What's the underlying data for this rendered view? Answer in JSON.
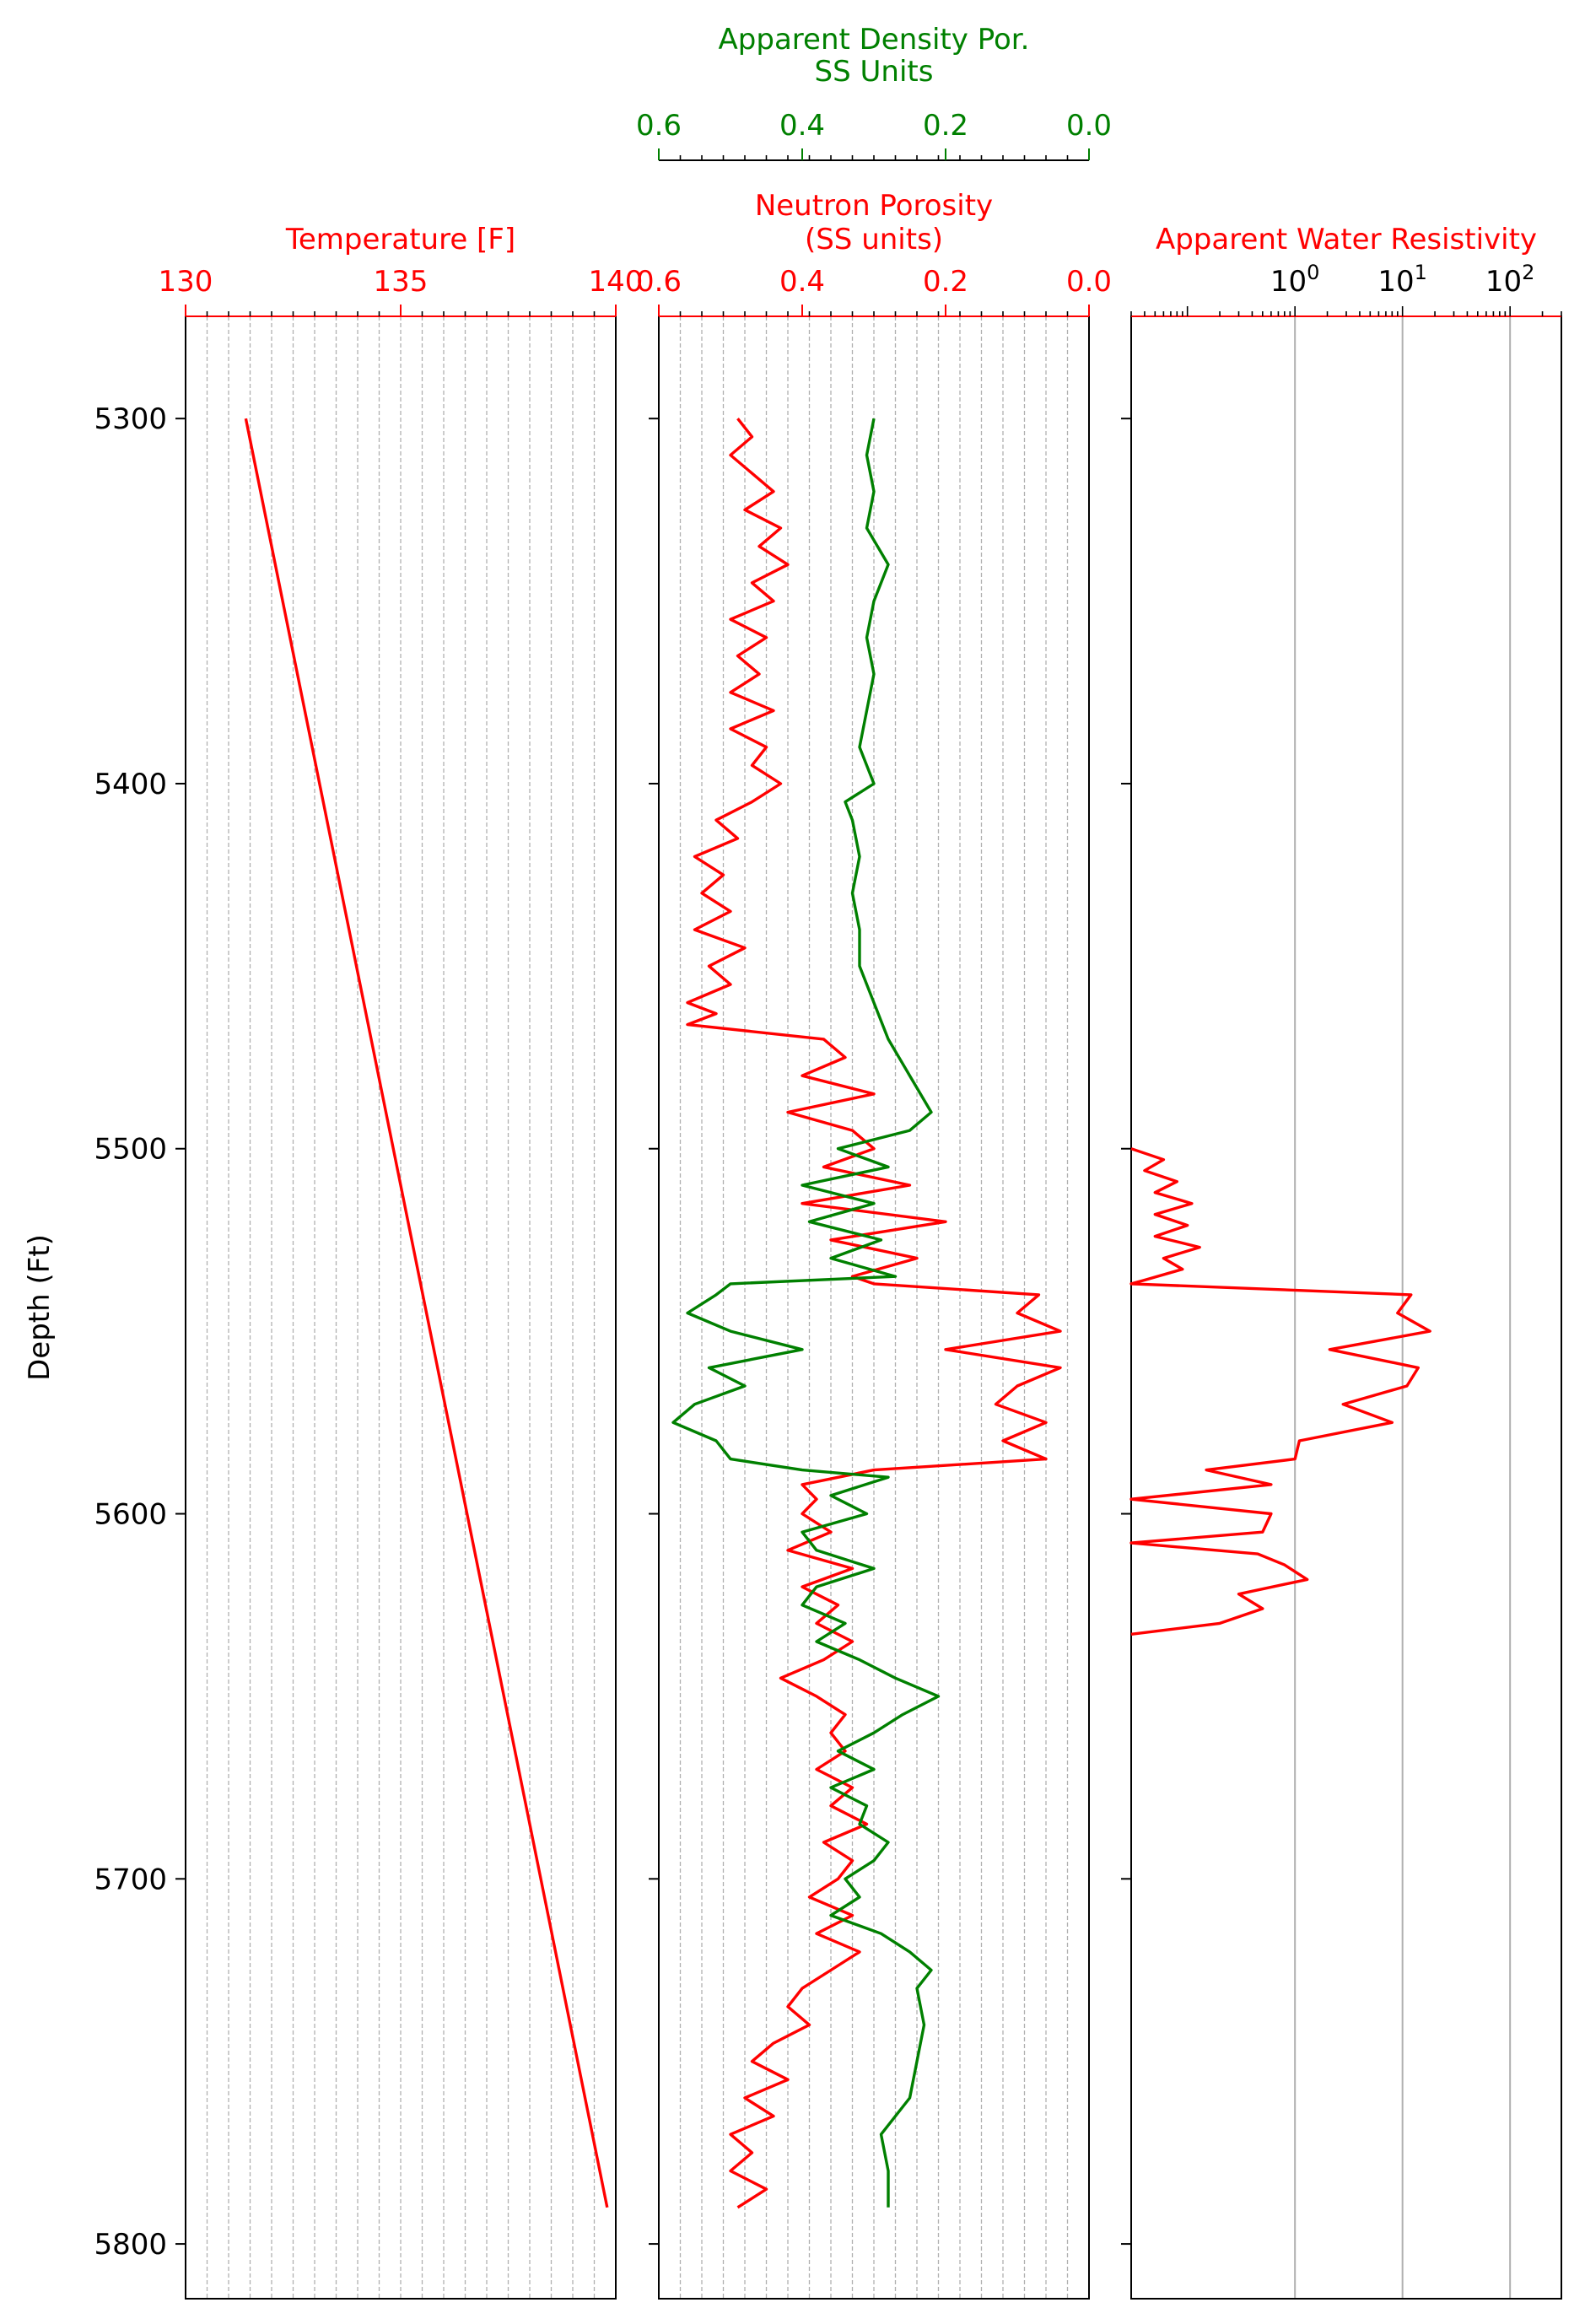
{
  "colors": {
    "red": "#ff0000",
    "green": "#008000",
    "grid": "#b0b0b0",
    "axis": "#000000"
  },
  "chart_data": {
    "type": "line",
    "ylabel": "Depth (Ft)",
    "ylim": [
      5815,
      5272
    ],
    "yticks": [
      "5300",
      "5400",
      "5500",
      "5600",
      "5700",
      "5800"
    ],
    "tracks": [
      {
        "xlabel": "Temperature [F]",
        "label_color": "#ff0000",
        "xlim": [
          130,
          140
        ],
        "xticks": [
          "130",
          "135",
          "140"
        ],
        "grid": "dashed-minor",
        "series": [
          {
            "color": "#ff0000",
            "depth": [
              5300,
              5790
            ],
            "values": [
              131.4,
              139.8
            ]
          }
        ]
      },
      {
        "xlabel": "Neutron Porosity\n(SS units)",
        "label_color": "#ff0000",
        "xlim": [
          0.6,
          0.0
        ],
        "xticks": [
          "0.6",
          "0.4",
          "0.2",
          "0.0"
        ],
        "second_xlabel": "Apparent Density Por.\nSS Units",
        "second_label_color": "#008000",
        "second_xlim": [
          0.6,
          0.0
        ],
        "second_xticks": [
          "0.6",
          "0.4",
          "0.2",
          "0.0"
        ],
        "grid": "dashed-minor",
        "series": [
          {
            "color": "#ff0000",
            "depth": [
              5300,
              5305,
              5310,
              5315,
              5320,
              5325,
              5330,
              5335,
              5340,
              5345,
              5350,
              5355,
              5360,
              5365,
              5370,
              5375,
              5380,
              5385,
              5390,
              5395,
              5400,
              5405,
              5410,
              5415,
              5420,
              5425,
              5430,
              5435,
              5440,
              5445,
              5450,
              5455,
              5460,
              5463,
              5466,
              5470,
              5475,
              5480,
              5485,
              5490,
              5495,
              5500,
              5505,
              5510,
              5515,
              5520,
              5525,
              5530,
              5535,
              5537,
              5540,
              5545,
              5550,
              5555,
              5560,
              5565,
              5570,
              5575,
              5580,
              5585,
              5588,
              5592,
              5596,
              5600,
              5605,
              5610,
              5615,
              5620,
              5625,
              5630,
              5635,
              5640,
              5645,
              5650,
              5655,
              5660,
              5665,
              5670,
              5675,
              5680,
              5685,
              5690,
              5695,
              5700,
              5705,
              5710,
              5715,
              5720,
              5725,
              5730,
              5735,
              5740,
              5745,
              5750,
              5755,
              5760,
              5765,
              5770,
              5775,
              5780,
              5785,
              5790
            ],
            "values": [
              0.49,
              0.47,
              0.5,
              0.47,
              0.44,
              0.48,
              0.43,
              0.46,
              0.42,
              0.47,
              0.44,
              0.5,
              0.45,
              0.49,
              0.46,
              0.5,
              0.44,
              0.5,
              0.45,
              0.47,
              0.43,
              0.47,
              0.52,
              0.49,
              0.55,
              0.51,
              0.54,
              0.5,
              0.55,
              0.48,
              0.53,
              0.5,
              0.56,
              0.52,
              0.56,
              0.37,
              0.34,
              0.4,
              0.3,
              0.42,
              0.33,
              0.3,
              0.37,
              0.25,
              0.4,
              0.2,
              0.36,
              0.24,
              0.33,
              0.3,
              0.07,
              0.1,
              0.04,
              0.2,
              0.04,
              0.1,
              0.13,
              0.06,
              0.12,
              0.06,
              0.3,
              0.4,
              0.38,
              0.4,
              0.36,
              0.42,
              0.33,
              0.4,
              0.35,
              0.38,
              0.33,
              0.37,
              0.43,
              0.38,
              0.34,
              0.36,
              0.34,
              0.38,
              0.33,
              0.36,
              0.31,
              0.37,
              0.33,
              0.35,
              0.39,
              0.33,
              0.38,
              0.32,
              0.36,
              0.4,
              0.42,
              0.39,
              0.44,
              0.47,
              0.42,
              0.48,
              0.44,
              0.5,
              0.47,
              0.5,
              0.45,
              0.49
            ]
          },
          {
            "color": "#008000",
            "depth": [
              5300,
              5310,
              5320,
              5330,
              5340,
              5350,
              5360,
              5370,
              5380,
              5390,
              5400,
              5405,
              5410,
              5420,
              5430,
              5440,
              5450,
              5460,
              5470,
              5480,
              5490,
              5495,
              5500,
              5505,
              5510,
              5515,
              5520,
              5525,
              5530,
              5535,
              5537,
              5540,
              5545,
              5550,
              5555,
              5560,
              5565,
              5570,
              5575,
              5580,
              5585,
              5588,
              5590,
              5595,
              5600,
              5605,
              5610,
              5615,
              5620,
              5625,
              5630,
              5635,
              5640,
              5645,
              5650,
              5655,
              5660,
              5665,
              5670,
              5675,
              5680,
              5685,
              5690,
              5695,
              5700,
              5705,
              5710,
              5715,
              5720,
              5725,
              5730,
              5740,
              5750,
              5760,
              5770,
              5780,
              5790
            ],
            "values": [
              0.3,
              0.31,
              0.3,
              0.31,
              0.28,
              0.3,
              0.31,
              0.3,
              0.31,
              0.32,
              0.3,
              0.34,
              0.33,
              0.32,
              0.33,
              0.32,
              0.32,
              0.3,
              0.28,
              0.25,
              0.22,
              0.25,
              0.35,
              0.28,
              0.4,
              0.3,
              0.39,
              0.29,
              0.36,
              0.27,
              0.5,
              0.52,
              0.56,
              0.5,
              0.4,
              0.53,
              0.48,
              0.55,
              0.58,
              0.52,
              0.5,
              0.4,
              0.28,
              0.36,
              0.31,
              0.4,
              0.38,
              0.3,
              0.38,
              0.4,
              0.34,
              0.38,
              0.32,
              0.27,
              0.21,
              0.26,
              0.3,
              0.35,
              0.3,
              0.36,
              0.31,
              0.32,
              0.28,
              0.3,
              0.34,
              0.32,
              0.36,
              0.29,
              0.25,
              0.22,
              0.24,
              0.23,
              0.24,
              0.25,
              0.29,
              0.28,
              0.28
            ]
          }
        ]
      },
      {
        "xlabel": "Apparent Water Resistivity",
        "label_color": "#ff0000",
        "xscale": "log",
        "xlim": [
          0.03,
          300
        ],
        "xticks": [
          "10^0",
          "10^1",
          "10^2"
        ],
        "grid": "major-solid",
        "series": [
          {
            "color": "#ff0000",
            "depth": [
              5500,
              5503,
              5506,
              5509,
              5512,
              5515,
              5518,
              5521,
              5524,
              5527,
              5530,
              5533,
              5536,
              5537,
              5540,
              5545,
              5550,
              5555,
              5560,
              5565,
              5570,
              5575,
              5580,
              5585,
              5588,
              5592,
              5596,
              5600,
              5605,
              5608,
              5611,
              5614,
              5618,
              5622,
              5626,
              5630,
              5633
            ],
            "values": [
              0.03,
              0.06,
              0.04,
              0.08,
              0.05,
              0.11,
              0.05,
              0.1,
              0.05,
              0.13,
              0.06,
              0.09,
              0.04,
              0.03,
              12,
              9,
              18,
              2.1,
              14,
              11,
              2.8,
              8,
              1.1,
              1,
              0.15,
              0.6,
              0.03,
              0.6,
              0.5,
              0.03,
              0.45,
              0.8,
              1.3,
              0.3,
              0.5,
              0.2,
              0.03
            ]
          }
        ]
      }
    ]
  }
}
